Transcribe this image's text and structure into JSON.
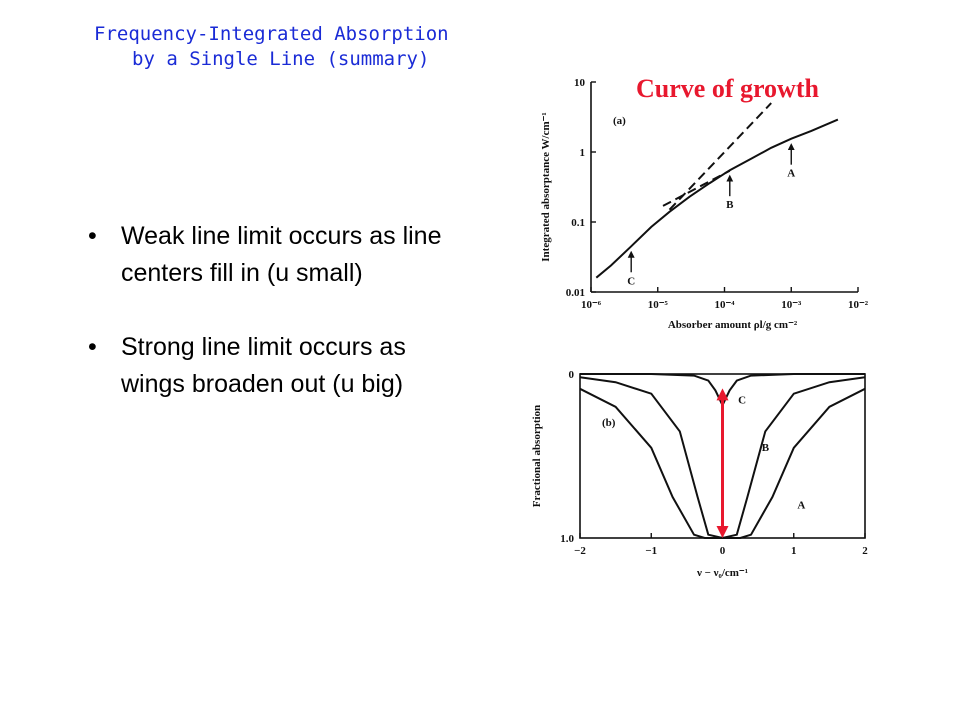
{
  "slide": {
    "title_line1": "Frequency-Integrated Absorption",
    "title_line2": "by a Single Line (summary)",
    "bullets": [
      "Weak line limit occurs as line centers fill in (u small)",
      "Strong line limit occurs as wings broaden out (u big)"
    ],
    "bullet_symbol": "•",
    "title_color": "#1a2bd6",
    "annotation_color": "#e8182e"
  },
  "chart_data": [
    {
      "type": "line",
      "panel_label": "(a)",
      "annotation": "Curve of growth",
      "xlabel": "Absorber amount ρl/g cm⁻²",
      "ylabel": "Integrated absorptance W/cm⁻¹",
      "x_scale": "log",
      "y_scale": "log",
      "xlim": [
        1e-06,
        0.01
      ],
      "ylim": [
        0.01,
        10
      ],
      "x_ticks": [
        "10⁻⁶",
        "10⁻⁵",
        "10⁻⁴",
        "10⁻³",
        "10⁻²"
      ],
      "y_ticks": [
        "0.01",
        "0.1",
        "1",
        "10"
      ],
      "series": [
        {
          "style": "solid",
          "x": [
            1.2e-06,
            2e-06,
            4e-06,
            8e-06,
            1.5e-05,
            3e-05,
            6e-05,
            0.00012,
            0.00025,
            0.0005,
            0.001,
            0.002,
            0.005
          ],
          "y": [
            0.016,
            0.024,
            0.045,
            0.085,
            0.14,
            0.23,
            0.36,
            0.55,
            0.8,
            1.15,
            1.55,
            2.0,
            2.9
          ]
        },
        {
          "style": "dashed",
          "x": [
            1.5e-05,
            0.0005
          ],
          "y": [
            0.15,
            5.0
          ]
        },
        {
          "style": "dashed",
          "x": [
            1.2e-05,
            0.00012
          ],
          "y": [
            0.17,
            0.54
          ]
        }
      ],
      "markers": [
        {
          "label": "A",
          "x": 0.001,
          "y": 1.55
        },
        {
          "label": "B",
          "x": 0.00012,
          "y": 0.55
        },
        {
          "label": "C",
          "x": 4e-06,
          "y": 0.045
        }
      ]
    },
    {
      "type": "line",
      "panel_label": "(b)",
      "xlabel": "ν − ν₀/cm⁻¹",
      "ylabel": "Fractional absorption",
      "xlim": [
        -2,
        2
      ],
      "ylim": [
        0,
        1.0
      ],
      "y_inverted": true,
      "x_ticks": [
        "−2",
        "−1",
        "0",
        "1",
        "2"
      ],
      "y_ticks": [
        "0",
        "1.0"
      ],
      "series": [
        {
          "label": "C",
          "x": [
            -2,
            -1,
            -0.4,
            -0.2,
            -0.1,
            0,
            0.1,
            0.2,
            0.4,
            1,
            2
          ],
          "y": [
            0.0,
            0.0,
            0.01,
            0.04,
            0.1,
            0.19,
            0.1,
            0.04,
            0.01,
            0.0,
            0.0
          ]
        },
        {
          "label": "B",
          "x": [
            -2,
            -1.5,
            -1.0,
            -0.6,
            -0.35,
            -0.2,
            0,
            0.2,
            0.35,
            0.6,
            1.0,
            1.5,
            2
          ],
          "y": [
            0.02,
            0.05,
            0.12,
            0.35,
            0.75,
            0.98,
            1.0,
            0.98,
            0.75,
            0.35,
            0.12,
            0.05,
            0.02
          ]
        },
        {
          "label": "A",
          "x": [
            -2,
            -1.5,
            -1.0,
            -0.7,
            -0.4,
            -0.25,
            0,
            0.25,
            0.4,
            0.7,
            1.0,
            1.5,
            2
          ],
          "y": [
            0.09,
            0.2,
            0.45,
            0.75,
            0.98,
            1.0,
            1.0,
            1.0,
            0.98,
            0.75,
            0.45,
            0.2,
            0.09
          ]
        }
      ],
      "red_arrow": {
        "x": 0,
        "y": [
          0.1,
          1.0
        ]
      }
    }
  ]
}
